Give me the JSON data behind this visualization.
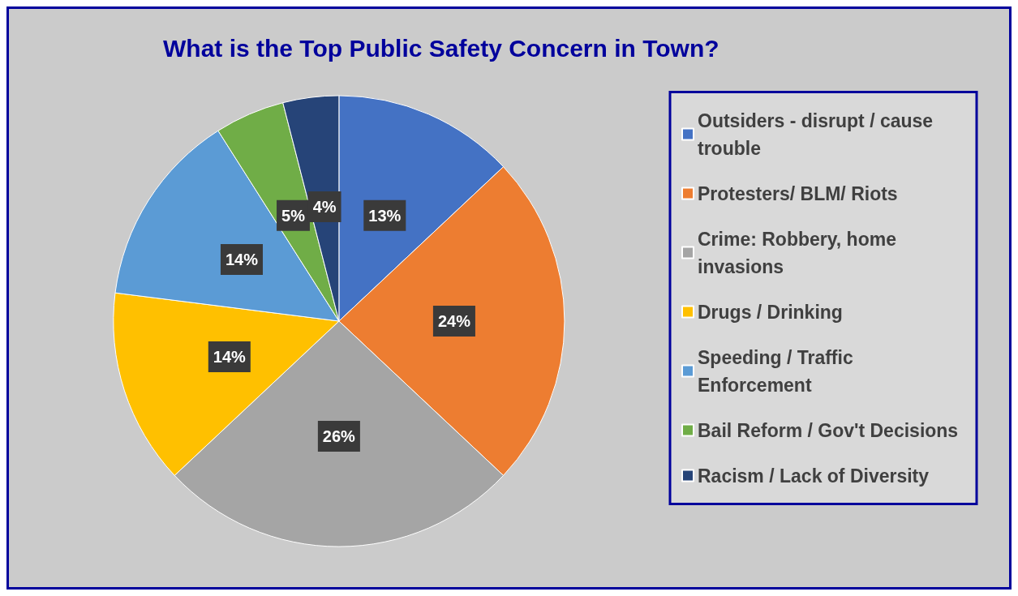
{
  "chart_data": {
    "type": "pie",
    "title": "What is the Top Public Safety Concern in Town?",
    "categories": [
      "Outsiders - disrupt / cause trouble",
      "Protesters/ BLM/ Riots",
      "Crime: Robbery, home invasions",
      "Drugs / Drinking",
      "Speeding / Traffic Enforcement",
      "Bail Reform / Gov't Decisions",
      "Racism / Lack of Diversity"
    ],
    "values": [
      13,
      24,
      26,
      14,
      14,
      5,
      4
    ],
    "colors": [
      "#4472c4",
      "#ed7d31",
      "#a5a5a5",
      "#ffc000",
      "#5b9bd5",
      "#70ad47",
      "#264478"
    ],
    "value_labels": [
      "13%",
      "24%",
      "26%",
      "14%",
      "14%",
      "5%",
      "4%"
    ],
    "legend": "right"
  }
}
